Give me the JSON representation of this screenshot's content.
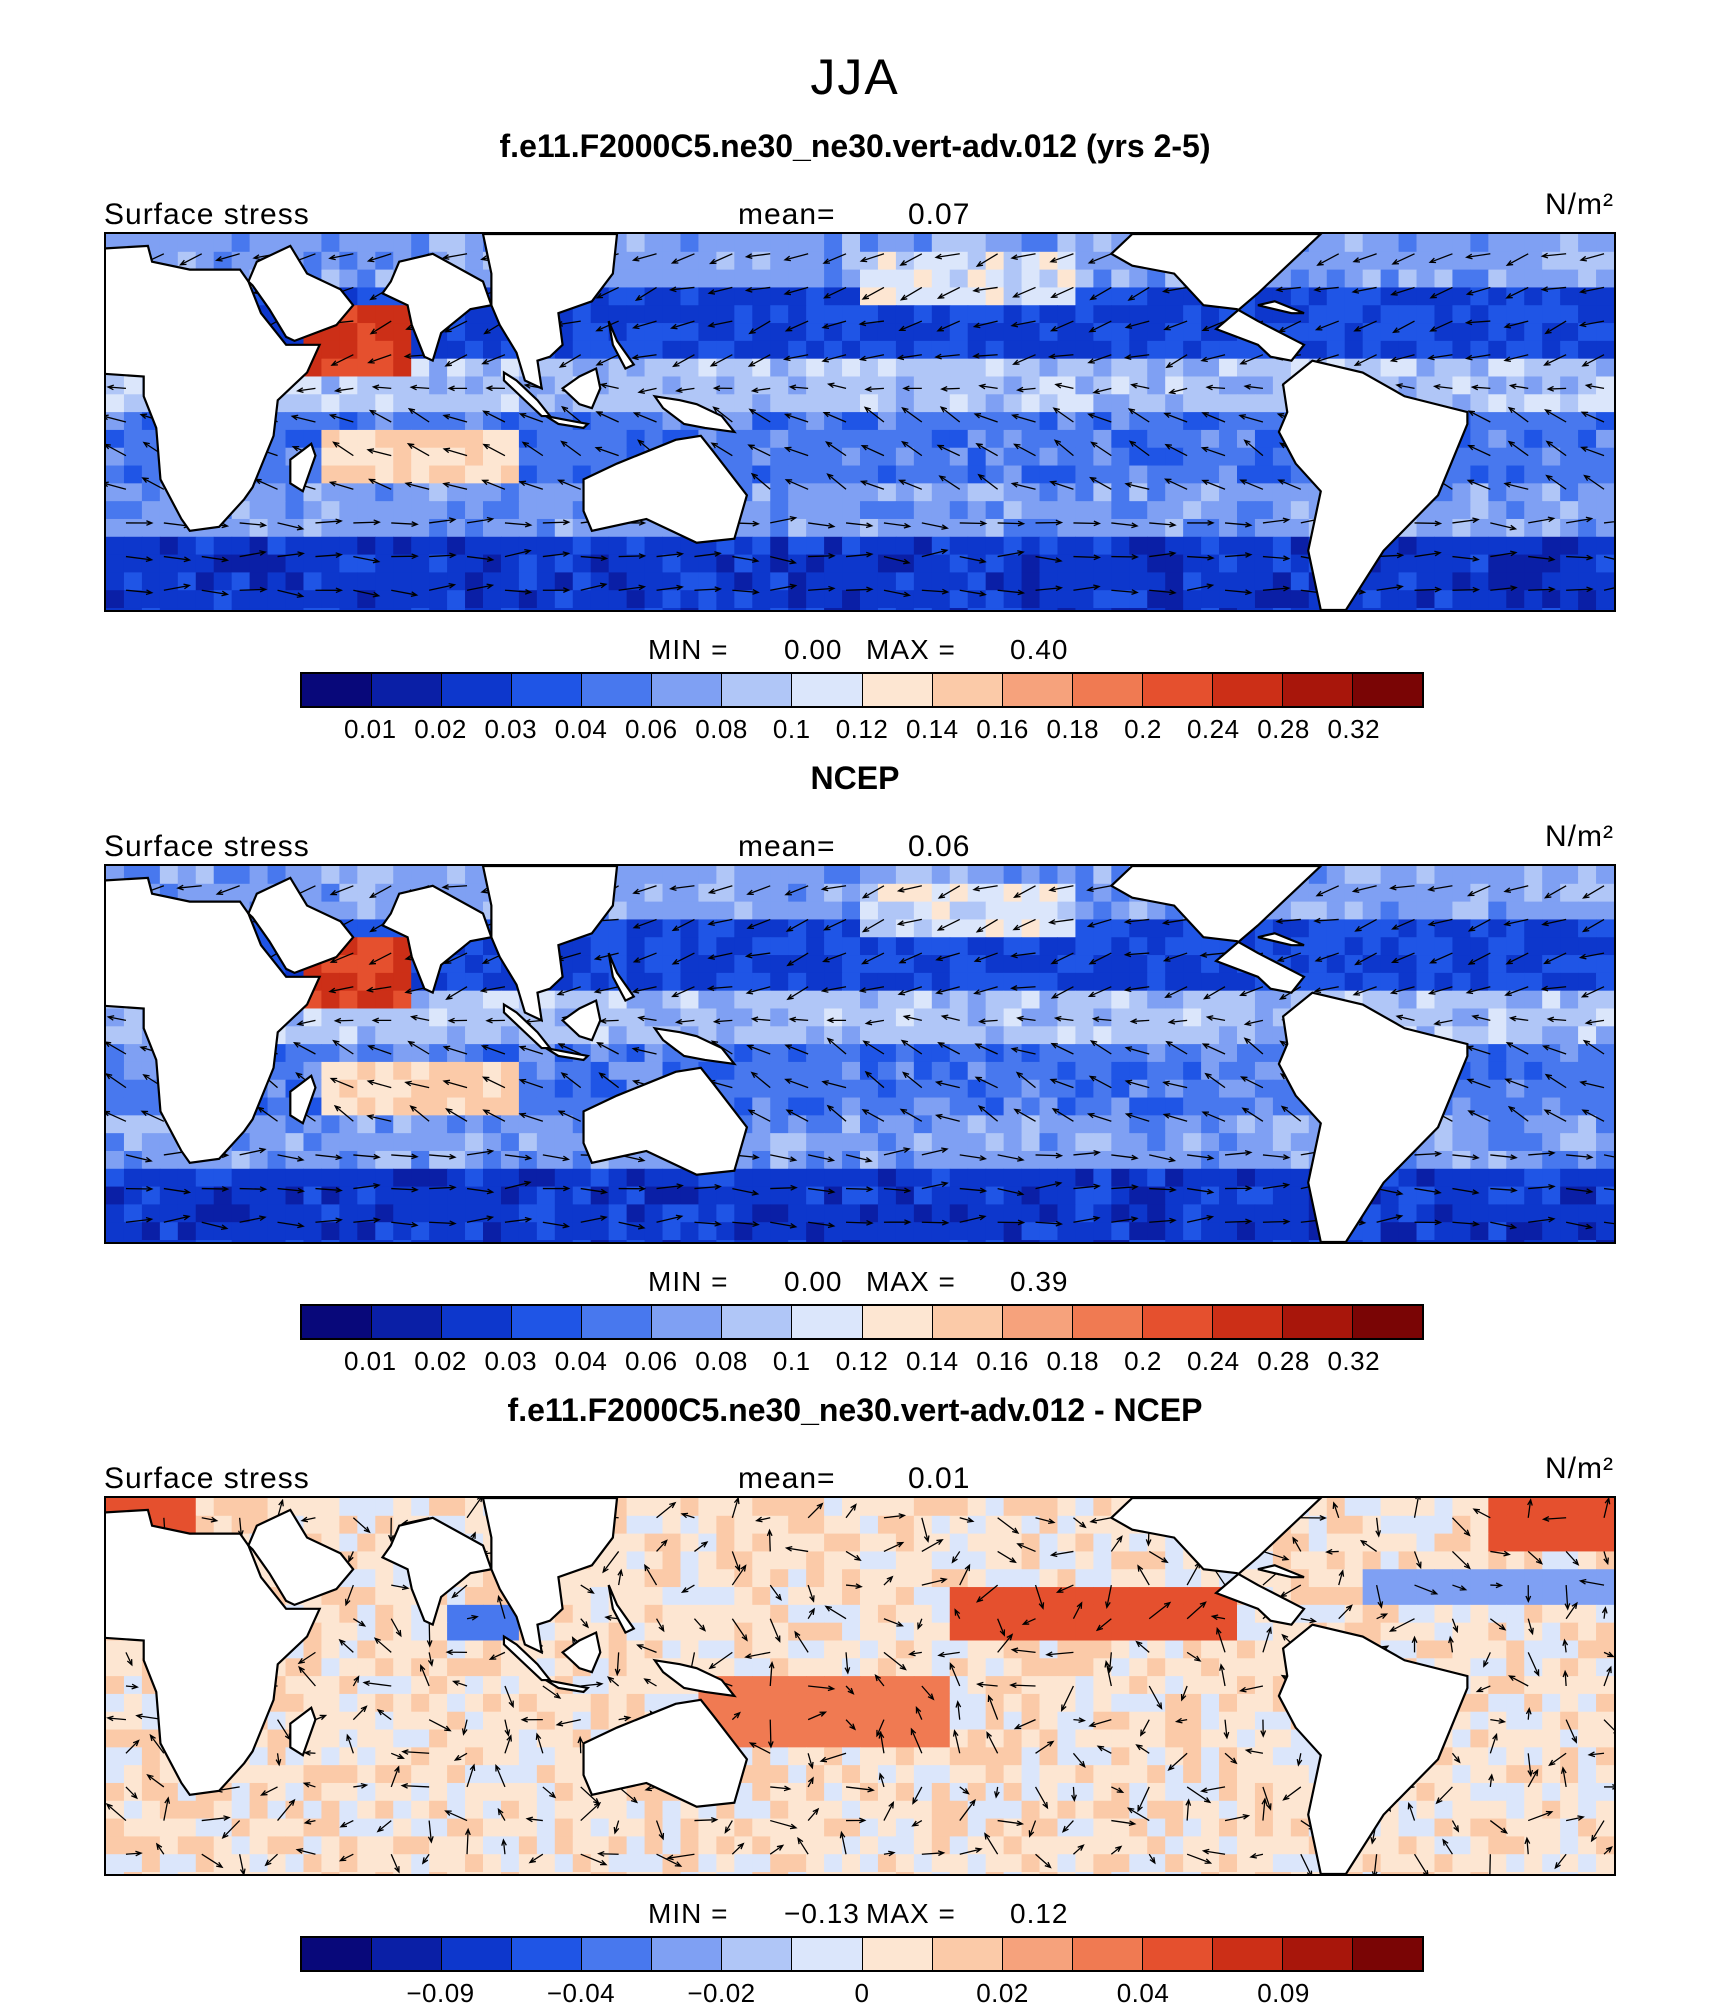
{
  "figure": {
    "season": "JJA"
  },
  "panels": [
    {
      "title": "f.e11.F2000C5.ne30_ne30.vert-adv.012 (yrs 2-5)",
      "left_label": "Surface stress",
      "mean_label": "mean=",
      "mean_value": "0.07",
      "units": "N/m²",
      "min_label": "MIN =",
      "min_value": "0.00",
      "max_label": "MAX =",
      "max_value": "0.40",
      "colorbar_ticks": [
        "0.01",
        "0.02",
        "0.03",
        "0.04",
        "0.06",
        "0.08",
        "0.1",
        "0.12",
        "0.14",
        "0.16",
        "0.18",
        "0.2",
        "0.24",
        "0.28",
        "0.32"
      ],
      "palette": "abs"
    },
    {
      "title": "NCEP",
      "left_label": "Surface stress",
      "mean_label": "mean=",
      "mean_value": "0.06",
      "units": "N/m²",
      "min_label": "MIN =",
      "min_value": "0.00",
      "max_label": "MAX =",
      "max_value": "0.39",
      "colorbar_ticks": [
        "0.01",
        "0.02",
        "0.03",
        "0.04",
        "0.06",
        "0.08",
        "0.1",
        "0.12",
        "0.14",
        "0.16",
        "0.18",
        "0.2",
        "0.24",
        "0.28",
        "0.32"
      ],
      "palette": "abs"
    },
    {
      "title": "f.e11.F2000C5.ne30_ne30.vert-adv.012 - NCEP",
      "left_label": "Surface stress",
      "mean_label": "mean=",
      "mean_value": "0.01",
      "units": "N/m²",
      "min_label": "MIN =",
      "min_value": "−0.13",
      "max_label": "MAX =",
      "max_value": "0.12",
      "colorbar_ticks": [
        "−0.09",
        "−0.04",
        "−0.02",
        "0",
        "0.02",
        "0.04",
        "0.09"
      ],
      "palette": "diff"
    }
  ],
  "colors": {
    "colorbar": [
      "#08087a",
      "#0a1fa6",
      "#0d37cc",
      "#1f55e6",
      "#4878ee",
      "#7fa0f3",
      "#b0c6f7",
      "#dbe6fb",
      "#fde6d2",
      "#fbcaa8",
      "#f6a27c",
      "#f07a52",
      "#e5502e",
      "#cc2f17",
      "#a8160b",
      "#7a0505"
    ],
    "land": "#ffffff",
    "coast": "#000000"
  }
}
